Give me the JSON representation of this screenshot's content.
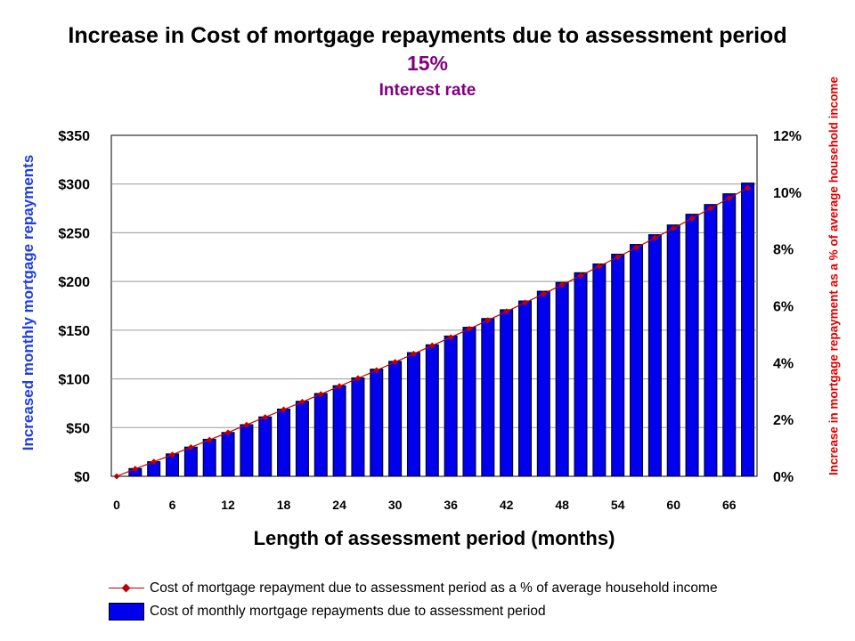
{
  "chart_data": {
    "type": "bar",
    "title": "Increase in Cost of mortgage repayments due to assessment period",
    "subtitle_value": "15%",
    "subtitle_label": "Interest rate",
    "xlabel": "Length of assessment period (months)",
    "ylabel_left": "Increased monthly mortgage repayments",
    "ylabel_right": "Increase in mortgage repayment as a % of average household income",
    "x": [
      0,
      2,
      4,
      6,
      8,
      10,
      12,
      14,
      16,
      18,
      20,
      22,
      24,
      26,
      28,
      30,
      32,
      34,
      36,
      38,
      40,
      42,
      44,
      46,
      48,
      50,
      52,
      54,
      56,
      58,
      60,
      62,
      64,
      66,
      68
    ],
    "xticks": [
      0,
      6,
      12,
      18,
      24,
      30,
      36,
      42,
      48,
      54,
      60,
      66
    ],
    "ylim_left": [
      0,
      350
    ],
    "yticks_left": [
      "$0",
      "$50",
      "$100",
      "$150",
      "$200",
      "$250",
      "$300",
      "$350"
    ],
    "ylim_right": [
      0,
      12
    ],
    "yticks_right": [
      "0%",
      "2%",
      "4%",
      "6%",
      "8%",
      "10%",
      "12%"
    ],
    "grid": true,
    "legend_position": "bottom",
    "series": [
      {
        "name": "Cost of mortgage repayment due to assessment period as a % of average household income",
        "type": "line",
        "axis": "right",
        "color": "#c00000",
        "values": [
          0,
          0.26,
          0.51,
          0.76,
          1.02,
          1.28,
          1.54,
          1.81,
          2.08,
          2.35,
          2.62,
          2.89,
          3.17,
          3.45,
          3.73,
          4.02,
          4.31,
          4.6,
          4.89,
          5.19,
          5.49,
          5.8,
          6.11,
          6.42,
          6.74,
          7.06,
          7.39,
          7.72,
          8.05,
          8.39,
          8.73,
          9.08,
          9.43,
          9.79,
          10.15
        ]
      },
      {
        "name": "Cost of monthly mortgage repayments due to assessment period",
        "type": "bar",
        "axis": "left",
        "color": "#0000ee",
        "values": [
          0,
          8,
          15,
          23,
          30,
          38,
          45,
          53,
          61,
          69,
          77,
          85,
          93,
          101,
          110,
          118,
          127,
          135,
          144,
          153,
          162,
          171,
          180,
          190,
          199,
          209,
          218,
          228,
          238,
          248,
          258,
          269,
          279,
          290,
          301
        ]
      }
    ]
  }
}
